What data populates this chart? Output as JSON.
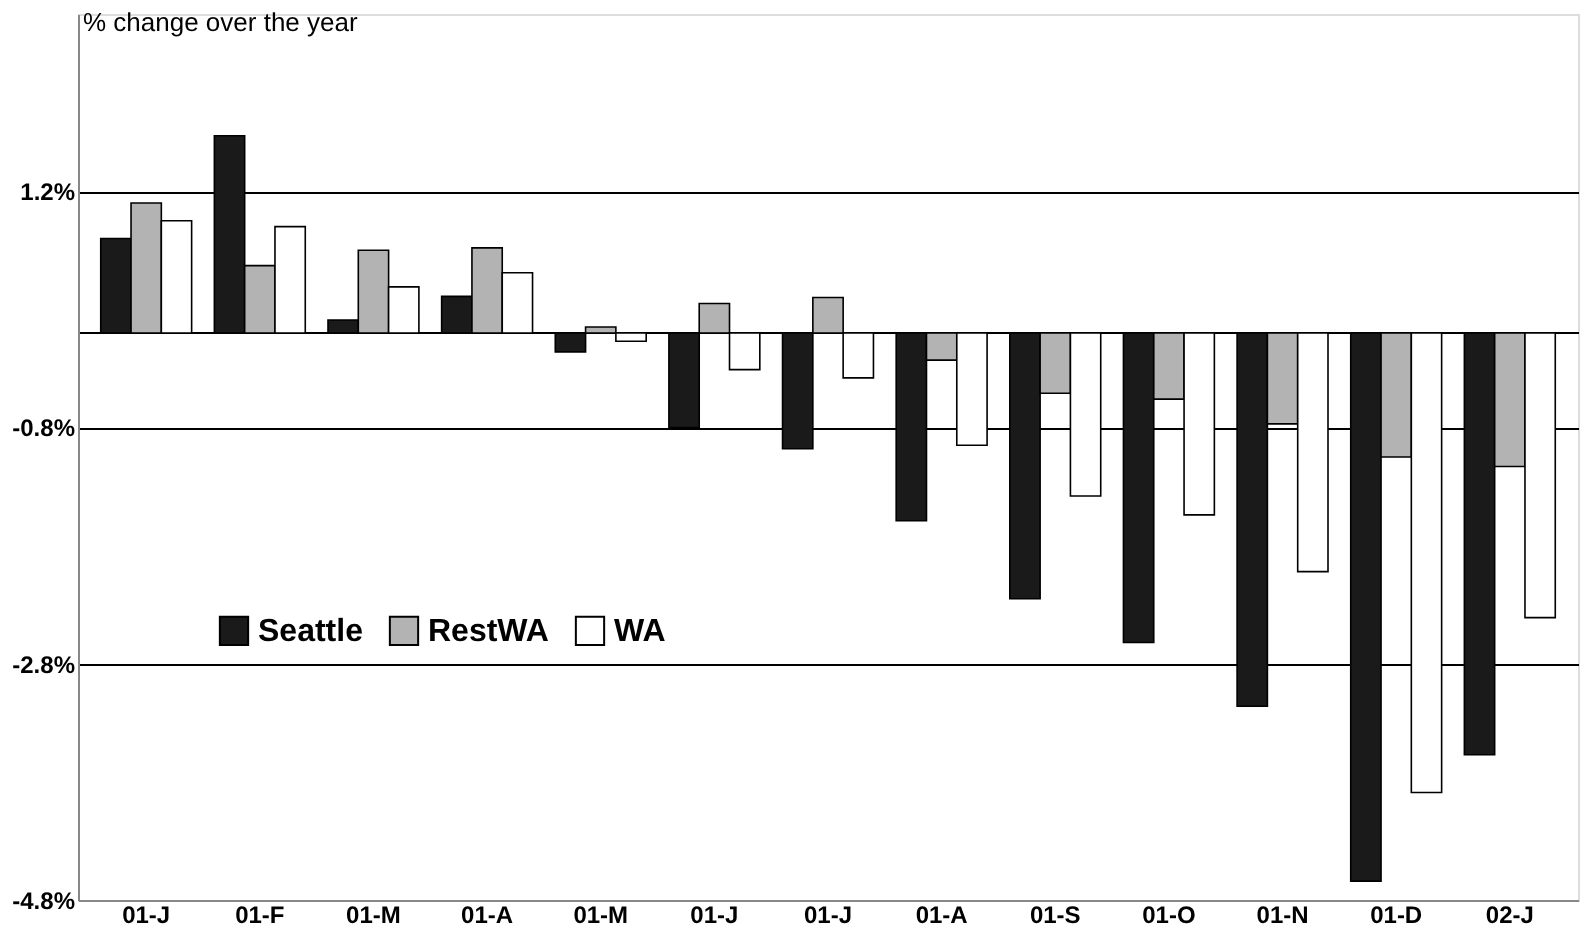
{
  "chart_data": {
    "type": "bar",
    "ylabel": "% change over the year",
    "categories": [
      "01-J",
      "01-F",
      "01-M",
      "01-A",
      "01-M",
      "01-J",
      "01-J",
      "01-A",
      "01-S",
      "01-O",
      "01-N",
      "01-D",
      "02-J"
    ],
    "series": [
      {
        "name": "Seattle",
        "color": "#1a1a1a",
        "values": [
          0.8,
          1.67,
          0.11,
          0.31,
          -0.16,
          -0.8,
          -0.98,
          -1.59,
          -2.25,
          -2.62,
          -3.16,
          -4.64,
          -3.57
        ]
      },
      {
        "name": "RestWA",
        "color": "#b3b3b3",
        "values": [
          1.1,
          0.57,
          0.7,
          0.72,
          0.05,
          0.25,
          0.3,
          -0.23,
          -0.51,
          -0.56,
          -0.77,
          -1.05,
          -1.13
        ]
      },
      {
        "name": "WA",
        "color": "#ffffff",
        "values": [
          0.95,
          0.9,
          0.39,
          0.51,
          -0.07,
          -0.31,
          -0.38,
          -0.95,
          -1.38,
          -1.54,
          -2.02,
          -3.89,
          -2.41
        ]
      }
    ],
    "ylim": [
      -4.8,
      2.7
    ],
    "yticks": [
      {
        "value": 1.2,
        "label": "1.2%"
      },
      {
        "value": 0,
        "label": null
      },
      {
        "value": -0.8,
        "label": "-0.8%"
      },
      {
        "value": -2.8,
        "label": "-2.8%"
      },
      {
        "value": -4.8,
        "label": "-4.8%"
      }
    ],
    "grid": "y",
    "legend": "bottom left"
  }
}
